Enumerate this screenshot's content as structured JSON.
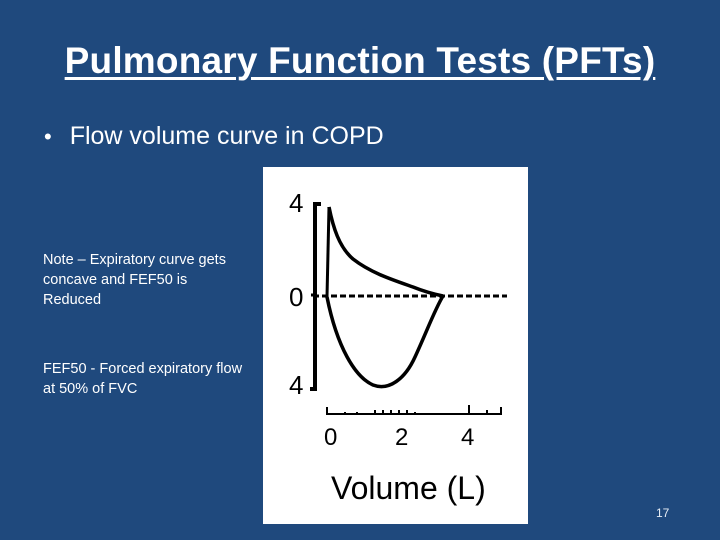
{
  "slide": {
    "title": "Pulmonary Function Tests (PFTs)",
    "bullet": "Flow volume curve in COPD",
    "note": "Note – Expiratory curve gets concave and FEF50 is Reduced",
    "definition": "FEF50 - Forced expiratory flow at 50% of FVC",
    "slide_number": "17"
  },
  "figure": {
    "y_tick_top": "4",
    "y_tick_mid": "0",
    "y_tick_bottom": "4",
    "x_tick_0": "0",
    "x_tick_2": "2",
    "x_tick_4": "4",
    "x_label": "Volume (L)"
  },
  "colors": {
    "background": "#1f497d",
    "text": "#ffffff",
    "figure_background": "#ffffff",
    "figure_ink": "#000000"
  }
}
